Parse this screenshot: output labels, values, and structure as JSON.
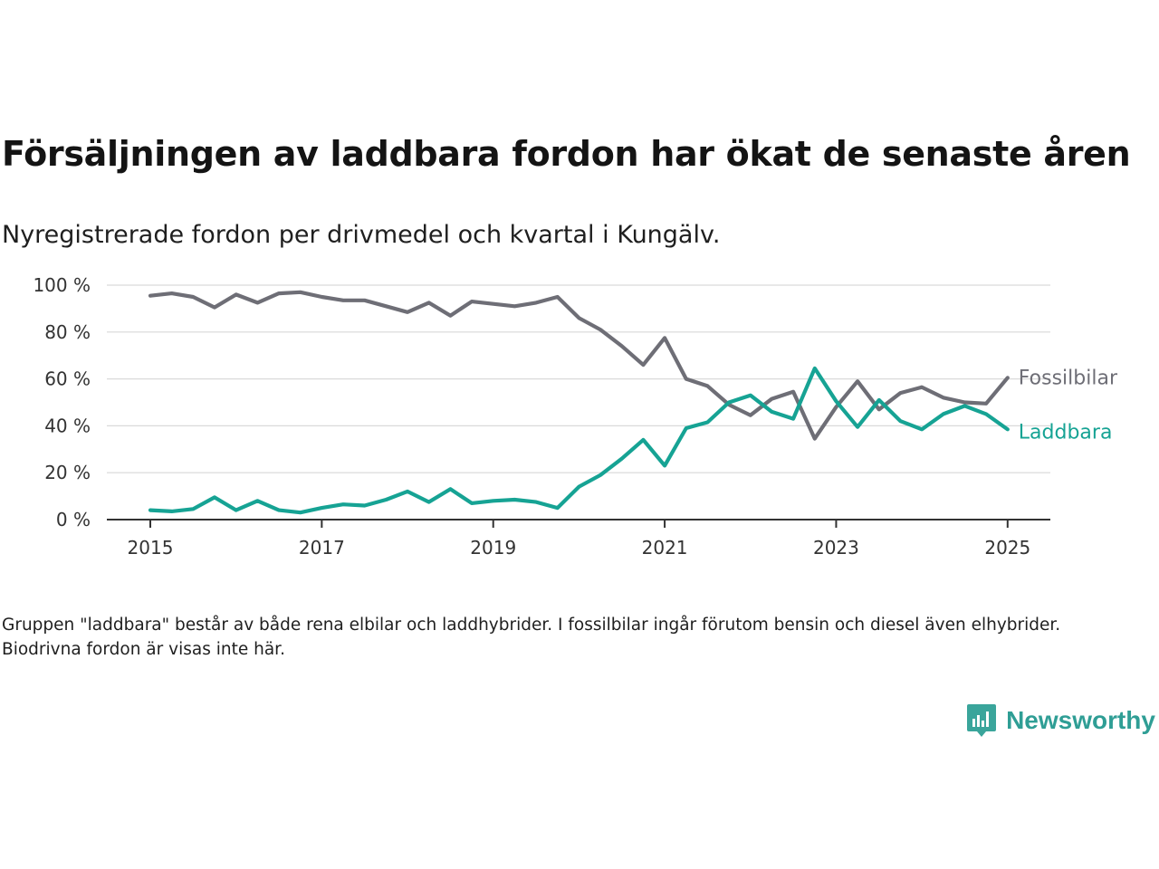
{
  "title": "Försäljningen av laddbara fordon har ökat de senaste åren",
  "subtitle": "Nyregistrerade fordon per drivmedel och kvartal i Kungälv.",
  "footnote": "Gruppen \"laddbara\" består av både rena elbilar och laddhybrider. I fossilbilar ingår förutom bensin och diesel även elhybrider. Biodrivna fordon är visas inte här.",
  "brand": {
    "name": "Newsworthy",
    "icon": "newsworthy-logo-icon",
    "color": "#3aa59b"
  },
  "chart_data": {
    "type": "line",
    "title": "Försäljningen av laddbara fordon har ökat de senaste åren",
    "subtitle": "Nyregistrerade fordon per drivmedel och kvartal i Kungälv.",
    "xlabel": "",
    "ylabel": "",
    "x_ticks": [
      "2015",
      "2017",
      "2019",
      "2021",
      "2023",
      "2025"
    ],
    "y_ticks": [
      "0 %",
      "20 %",
      "40 %",
      "60 %",
      "80 %",
      "100 %"
    ],
    "ylim": [
      0,
      100
    ],
    "grid": "horizontal",
    "legend": "direct labels at line ends (right)",
    "x": [
      "2015Q1",
      "2015Q2",
      "2015Q3",
      "2015Q4",
      "2016Q1",
      "2016Q2",
      "2016Q3",
      "2016Q4",
      "2017Q1",
      "2017Q2",
      "2017Q3",
      "2017Q4",
      "2018Q1",
      "2018Q2",
      "2018Q3",
      "2018Q4",
      "2019Q1",
      "2019Q2",
      "2019Q3",
      "2019Q4",
      "2020Q1",
      "2020Q2",
      "2020Q3",
      "2020Q4",
      "2021Q1",
      "2021Q2",
      "2021Q3",
      "2021Q4",
      "2022Q1",
      "2022Q2",
      "2022Q3",
      "2022Q4",
      "2023Q1",
      "2023Q2",
      "2023Q3",
      "2023Q4",
      "2024Q1",
      "2024Q2",
      "2024Q3",
      "2024Q4",
      "2025Q1"
    ],
    "series": [
      {
        "name": "Fossilbilar",
        "color": "#6e6e76",
        "values": [
          95.5,
          96.5,
          95,
          90.5,
          96,
          92.5,
          96.5,
          97,
          95,
          93.5,
          93.5,
          91,
          88.5,
          92.5,
          87,
          93,
          92,
          91,
          92.5,
          95,
          86,
          81,
          74,
          66,
          77.5,
          60,
          57,
          49,
          44.5,
          51.5,
          54.5,
          34.5,
          48,
          59,
          47,
          54,
          56.5,
          52,
          50,
          49.5,
          60.5
        ]
      },
      {
        "name": "Laddbara",
        "color": "#16a394",
        "values": [
          4,
          3.5,
          4.5,
          9.5,
          4,
          8,
          4,
          3,
          5,
          6.5,
          6,
          8.5,
          12,
          7.5,
          13,
          7,
          8,
          8.5,
          7.5,
          5,
          14,
          19,
          26,
          34,
          23,
          39,
          41.5,
          50,
          53,
          46,
          43,
          64.5,
          50.5,
          39.5,
          51,
          42,
          38.5,
          45,
          48.5,
          45,
          38.5
        ]
      }
    ]
  }
}
